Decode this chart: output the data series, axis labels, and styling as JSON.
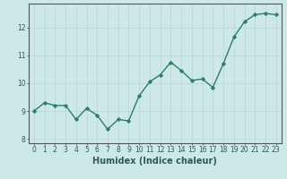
{
  "x": [
    0,
    1,
    2,
    3,
    4,
    5,
    6,
    7,
    8,
    9,
    10,
    11,
    12,
    13,
    14,
    15,
    16,
    17,
    18,
    19,
    20,
    21,
    22,
    23
  ],
  "y": [
    9.0,
    9.3,
    9.2,
    9.2,
    8.7,
    9.1,
    8.85,
    8.35,
    8.7,
    8.65,
    9.55,
    10.05,
    10.3,
    10.75,
    10.45,
    10.1,
    10.15,
    9.85,
    10.7,
    11.65,
    12.2,
    12.45,
    12.5,
    12.45
  ],
  "line_color": "#2d7d6e",
  "marker": "D",
  "markersize": 2.2,
  "linewidth": 1.0,
  "xlabel": "Humidex (Indice chaleur)",
  "xlabel_fontsize": 7,
  "bg_color": "#cce9e7",
  "grid_color": "#c0d8d6",
  "xlim": [
    -0.5,
    23.5
  ],
  "ylim": [
    7.85,
    12.85
  ],
  "yticks": [
    8,
    9,
    10,
    11,
    12
  ],
  "xticks": [
    0,
    1,
    2,
    3,
    4,
    5,
    6,
    7,
    8,
    9,
    10,
    11,
    12,
    13,
    14,
    15,
    16,
    17,
    18,
    19,
    20,
    21,
    22,
    23
  ],
  "tick_fontsize": 5.5,
  "spine_color": "#555555"
}
